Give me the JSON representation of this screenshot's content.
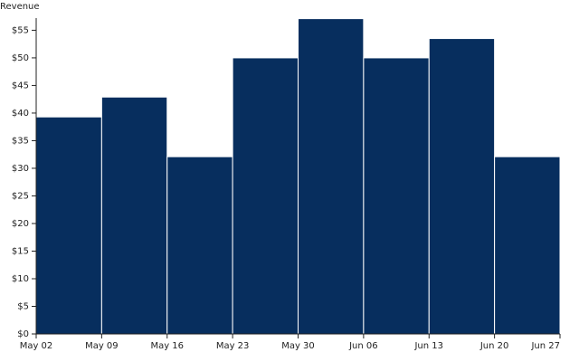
{
  "chart_data": {
    "type": "histogram",
    "y_label": "Revenue",
    "color": "#072e5e",
    "bins": [
      "May 02",
      "May 09",
      "May 16",
      "May 23",
      "May 30",
      "Jun 06",
      "Jun 13",
      "Jun 20",
      "Jun 27"
    ],
    "values": [
      39.3,
      42.9,
      32.1,
      50,
      57.1,
      50,
      53.5,
      32.1
    ],
    "ylim": [
      0,
      57.2
    ],
    "yticks": [
      {
        "value": 0,
        "label": "$0"
      },
      {
        "value": 5,
        "label": "$5"
      },
      {
        "value": 10,
        "label": "$10"
      },
      {
        "value": 15,
        "label": "$15"
      },
      {
        "value": 20,
        "label": "$20"
      },
      {
        "value": 25,
        "label": "$25"
      },
      {
        "value": 30,
        "label": "$30"
      },
      {
        "value": 35,
        "label": "$35"
      },
      {
        "value": 40,
        "label": "$40"
      },
      {
        "value": 45,
        "label": "$45"
      },
      {
        "value": 50,
        "label": "$50"
      },
      {
        "value": 55,
        "label": "$55"
      }
    ]
  }
}
